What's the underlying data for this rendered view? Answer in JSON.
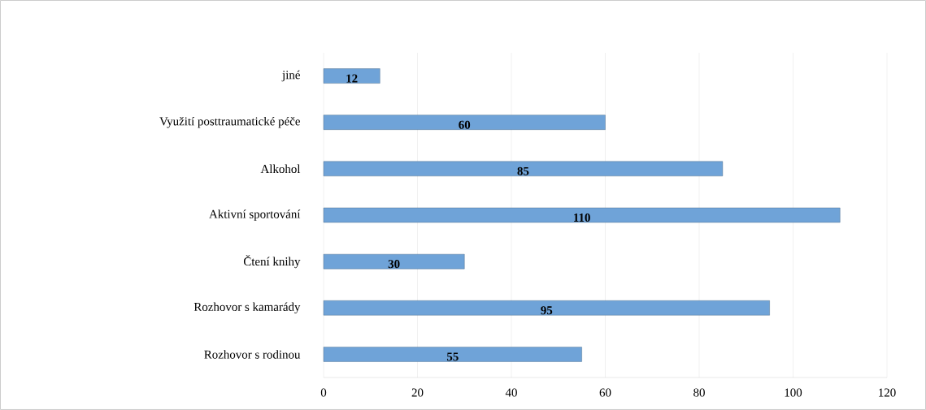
{
  "chart_data": {
    "type": "bar",
    "orientation": "horizontal",
    "categories": [
      "jiné",
      "Využití posttraumatické péče",
      "Alkohol",
      "Aktivní sportování",
      "Čtení knihy",
      "Rozhovor s kamarády",
      "Rozhovor s rodinou"
    ],
    "values": [
      12,
      60,
      85,
      110,
      30,
      95,
      55
    ],
    "color": "#6fa3d8",
    "xlim": [
      0,
      120
    ],
    "xticks": [
      0,
      20,
      40,
      60,
      80,
      100,
      120
    ],
    "grid": "x",
    "data_labels": true
  }
}
